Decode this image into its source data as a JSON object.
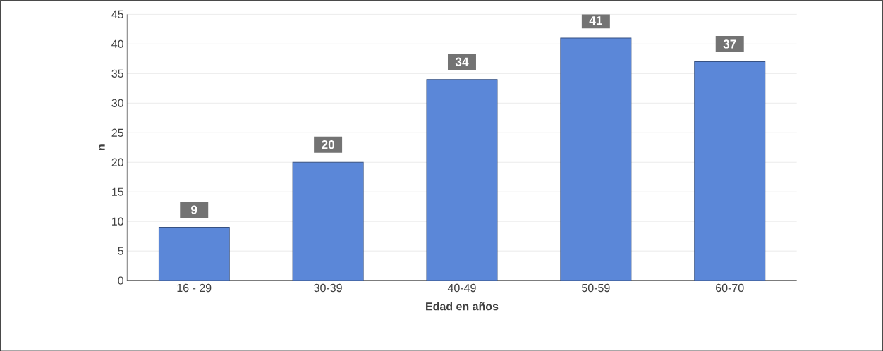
{
  "chart_data": {
    "type": "bar",
    "xlabel": "Edad en años",
    "ylabel": "n",
    "categories": [
      "16 - 29",
      "30-39",
      "40-49",
      "50-59",
      "60-70"
    ],
    "values": [
      9,
      20,
      34,
      41,
      37
    ],
    "color": "#5b87d8",
    "ylim": [
      0,
      45
    ],
    "yticks": [
      0,
      5,
      10,
      15,
      20,
      25,
      30,
      35,
      40,
      45
    ],
    "grid": "y",
    "data_labels": true
  }
}
